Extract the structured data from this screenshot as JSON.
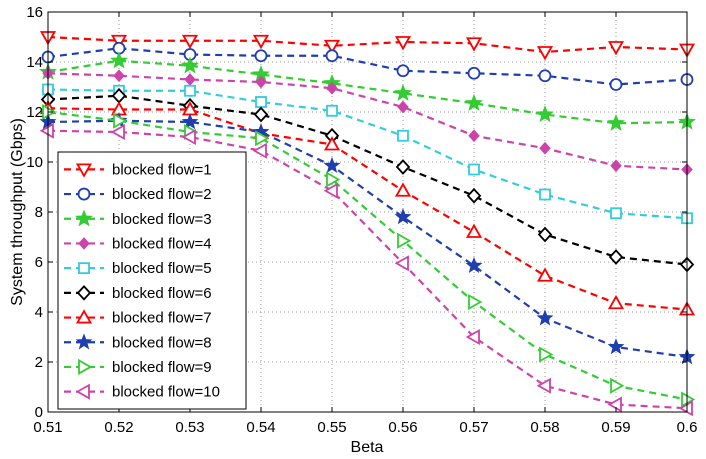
{
  "chart_data": {
    "type": "line",
    "title": "",
    "xlabel": "Beta",
    "ylabel": "System throughput (Gbps)",
    "xlim": [
      0.51,
      0.6
    ],
    "ylim": [
      0,
      16
    ],
    "grid": true,
    "legend_position": "left",
    "x": [
      0.51,
      0.52,
      0.53,
      0.54,
      0.55,
      0.56,
      0.57,
      0.58,
      0.59,
      0.6
    ],
    "x_tick_labels": [
      "0.51",
      "0.52",
      "0.53",
      "0.54",
      "0.55",
      "0.56",
      "0.57",
      "0.58",
      "0.59",
      "0.6"
    ],
    "y_tick_labels": [
      "0",
      "2",
      "4",
      "6",
      "8",
      "10",
      "12",
      "14",
      "16"
    ],
    "series": [
      {
        "name": "blocked flow=1",
        "color": "#ff0000",
        "marker": "triangle-down",
        "values": [
          15.0,
          14.85,
          14.85,
          14.85,
          14.65,
          14.8,
          14.75,
          14.4,
          14.6,
          14.5
        ]
      },
      {
        "name": "blocked flow=2",
        "color": "#1f3fb0",
        "marker": "circle",
        "values": [
          14.2,
          14.55,
          14.3,
          14.25,
          14.25,
          13.65,
          13.55,
          13.45,
          13.1,
          13.3
        ]
      },
      {
        "name": "blocked flow=3",
        "color": "#33cc33",
        "marker": "star",
        "values": [
          13.6,
          14.05,
          13.85,
          13.5,
          13.15,
          12.75,
          12.35,
          11.9,
          11.55,
          11.6
        ]
      },
      {
        "name": "blocked flow=4",
        "color": "#cc44aa",
        "marker": "diamond-filled",
        "values": [
          13.55,
          13.45,
          13.3,
          13.2,
          12.95,
          12.2,
          11.05,
          10.55,
          9.85,
          9.7
        ]
      },
      {
        "name": "blocked flow=5",
        "color": "#33ccdd",
        "marker": "square",
        "values": [
          12.9,
          12.85,
          12.85,
          12.4,
          12.05,
          11.05,
          9.7,
          8.7,
          7.95,
          7.75
        ]
      },
      {
        "name": "blocked flow=6",
        "color": "#000000",
        "marker": "diamond",
        "values": [
          12.5,
          12.65,
          12.25,
          11.9,
          11.05,
          9.8,
          8.65,
          7.1,
          6.2,
          5.9
        ]
      },
      {
        "name": "blocked flow=7",
        "color": "#ff0000",
        "marker": "triangle-up",
        "values": [
          12.15,
          12.1,
          12.1,
          11.15,
          10.7,
          8.85,
          7.2,
          5.45,
          4.35,
          4.1
        ]
      },
      {
        "name": "blocked flow=8",
        "color": "#1f3fb0",
        "marker": "star-filled",
        "values": [
          11.6,
          11.65,
          11.6,
          11.2,
          9.85,
          7.8,
          5.85,
          3.75,
          2.6,
          2.2
        ]
      },
      {
        "name": "blocked flow=9",
        "color": "#33cc33",
        "marker": "triangle-right",
        "values": [
          12.0,
          11.65,
          11.2,
          10.95,
          9.3,
          6.85,
          4.4,
          2.3,
          1.05,
          0.5
        ]
      },
      {
        "name": "blocked flow=10",
        "color": "#cc44aa",
        "marker": "triangle-left",
        "values": [
          11.25,
          11.2,
          11.0,
          10.45,
          8.85,
          5.95,
          3.0,
          1.05,
          0.3,
          0.15
        ]
      }
    ]
  }
}
